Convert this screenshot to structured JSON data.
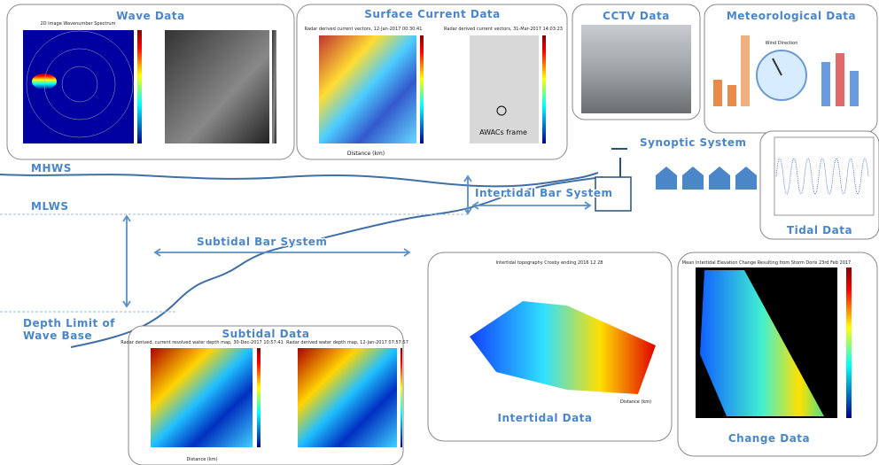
{
  "panels": {
    "wave": {
      "title": "Wave Data",
      "plot_title": "2D Image Wavenumber Spectrum"
    },
    "current": {
      "title": "Surface Current Data",
      "plot_titles": [
        "Radar derived current vectors, 12-Jan-2017 00:30:41",
        "Radar derived current vectors, 31-Mar-2017 14:03:23"
      ],
      "annotation": "AWACs frame",
      "x_label": "Distance (km)"
    },
    "cctv": {
      "title": "CCTV Data"
    },
    "met": {
      "title": "Meteorological Data",
      "dial_label": "Wind Direction"
    },
    "tidal": {
      "title": "Tidal Data"
    },
    "subtidal": {
      "title": "Subtidal Data",
      "plot_titles": [
        "Radar derived, current resolved water depth map, 30-Dec-2017 10:57:41",
        "Radar derived water depth map, 12-Jan-2017 07:57:57"
      ],
      "x_label": "Distance (km)"
    },
    "intertidal": {
      "title": "Intertidal Data",
      "plot_title": "Intertidal topography Crosby ending 2016 12 28",
      "x_label": "Distance (km)"
    },
    "change": {
      "title": "Change Data",
      "plot_title": "Mean Intertidal Elevation Change Resulting from Storm Doris 23rd Feb 2017"
    }
  },
  "labels": {
    "synoptic": "Synoptic System",
    "mhws": "MHWS",
    "mlws": "MLWS",
    "intertidal_bar": "Intertidal Bar System",
    "subtidal_bar": "Subtidal Bar System",
    "depth_limit": [
      "Depth Limit of",
      "Wave Base"
    ]
  }
}
